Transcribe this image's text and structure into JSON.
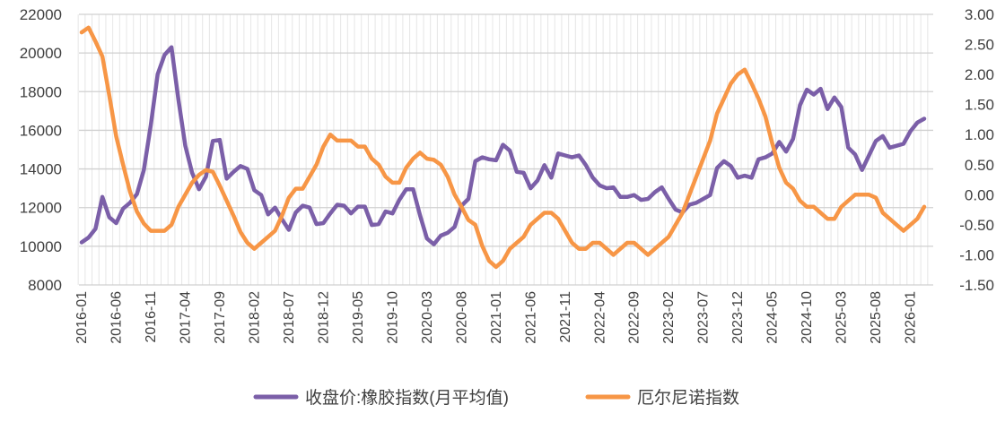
{
  "chart_data": {
    "type": "line",
    "title": "",
    "x_start": "2016-01",
    "x_tick_labels": [
      "2016-01",
      "2016-06",
      "2016-11",
      "2017-04",
      "2017-09",
      "2018-02",
      "2018-07",
      "2018-12",
      "2019-05",
      "2019-10",
      "2020-03",
      "2020-08",
      "2021-01",
      "2021-06",
      "2021-11",
      "2022-04",
      "2022-09",
      "2023-02",
      "2023-07",
      "2023-12",
      "2024-05",
      "2024-10",
      "2025-03",
      "2025-08",
      "2026-01"
    ],
    "x_tick_every": 5,
    "y_left": {
      "min": 8000,
      "max": 22000,
      "step": 2000,
      "tick_labels": [
        "8000",
        "10000",
        "12000",
        "14000",
        "16000",
        "18000",
        "20000",
        "22000"
      ]
    },
    "y_right": {
      "min": -1.5,
      "max": 3.0,
      "step": 0.5,
      "tick_labels": [
        "-1.50",
        "-1.00",
        "-0.50",
        "0.00",
        "0.50",
        "1.00",
        "1.50",
        "2.00",
        "2.50",
        "3.00"
      ]
    },
    "grid": true,
    "legend_position": "bottom",
    "series": [
      {
        "name": "收盘价:橡胶指数(月平均值)",
        "axis": "left",
        "color": "#7B5FA8",
        "values": [
          10200,
          10450,
          10900,
          12550,
          11500,
          11200,
          11950,
          12250,
          12700,
          13950,
          16250,
          18900,
          19900,
          20300,
          17600,
          15200,
          13800,
          12950,
          13600,
          15450,
          15500,
          13500,
          13850,
          14150,
          14000,
          12900,
          12650,
          11650,
          12000,
          11400,
          10850,
          11750,
          12100,
          12000,
          11150,
          11200,
          11700,
          12150,
          12100,
          11700,
          12050,
          12050,
          11100,
          11150,
          11800,
          11700,
          12400,
          12950,
          12950,
          11600,
          10400,
          10100,
          10550,
          10700,
          11000,
          12100,
          12450,
          14400,
          14600,
          14500,
          14450,
          15250,
          14950,
          13850,
          13800,
          13000,
          13400,
          14200,
          13550,
          14800,
          14700,
          14600,
          14700,
          14200,
          13550,
          13150,
          13000,
          13050,
          12550,
          12550,
          12650,
          12400,
          12450,
          12800,
          13050,
          12450,
          11900,
          11750,
          12150,
          12250,
          12450,
          12650,
          14050,
          14400,
          14150,
          13550,
          13650,
          13550,
          14500,
          14600,
          14800,
          15400,
          14900,
          15550,
          17300,
          18100,
          17850,
          18150,
          17100,
          17700,
          17200,
          15100,
          14750,
          13950,
          14700,
          15450,
          15700,
          15100,
          15200,
          15300,
          15950,
          16400,
          16600
        ]
      },
      {
        "name": "厄尔尼诺指数",
        "axis": "right",
        "color": "#F79646",
        "values": [
          2.7,
          2.78,
          2.55,
          2.3,
          1.65,
          0.97,
          0.5,
          0.05,
          -0.28,
          -0.48,
          -0.6,
          -0.6,
          -0.6,
          -0.5,
          -0.2,
          0.0,
          0.2,
          0.33,
          0.41,
          0.38,
          0.15,
          -0.1,
          -0.35,
          -0.62,
          -0.8,
          -0.9,
          -0.8,
          -0.7,
          -0.6,
          -0.35,
          -0.05,
          0.1,
          0.1,
          0.3,
          0.5,
          0.8,
          1.0,
          0.9,
          0.9,
          0.9,
          0.8,
          0.8,
          0.6,
          0.5,
          0.3,
          0.2,
          0.2,
          0.45,
          0.6,
          0.7,
          0.6,
          0.58,
          0.5,
          0.3,
          0.0,
          -0.2,
          -0.42,
          -0.5,
          -0.85,
          -1.1,
          -1.2,
          -1.1,
          -0.9,
          -0.8,
          -0.7,
          -0.5,
          -0.4,
          -0.3,
          -0.3,
          -0.4,
          -0.6,
          -0.8,
          -0.9,
          -0.9,
          -0.8,
          -0.8,
          -0.9,
          -1.0,
          -0.9,
          -0.8,
          -0.8,
          -0.9,
          -1.0,
          -0.9,
          -0.8,
          -0.7,
          -0.5,
          -0.3,
          0.0,
          0.3,
          0.6,
          0.9,
          1.35,
          1.6,
          1.85,
          2.0,
          2.08,
          1.85,
          1.6,
          1.3,
          0.85,
          0.45,
          0.2,
          0.1,
          -0.1,
          -0.2,
          -0.2,
          -0.3,
          -0.4,
          -0.4,
          -0.2,
          -0.1,
          0.0,
          0.0,
          0.0,
          -0.05,
          -0.3,
          -0.4,
          -0.5,
          -0.6,
          -0.5,
          -0.4,
          -0.2
        ]
      }
    ]
  }
}
